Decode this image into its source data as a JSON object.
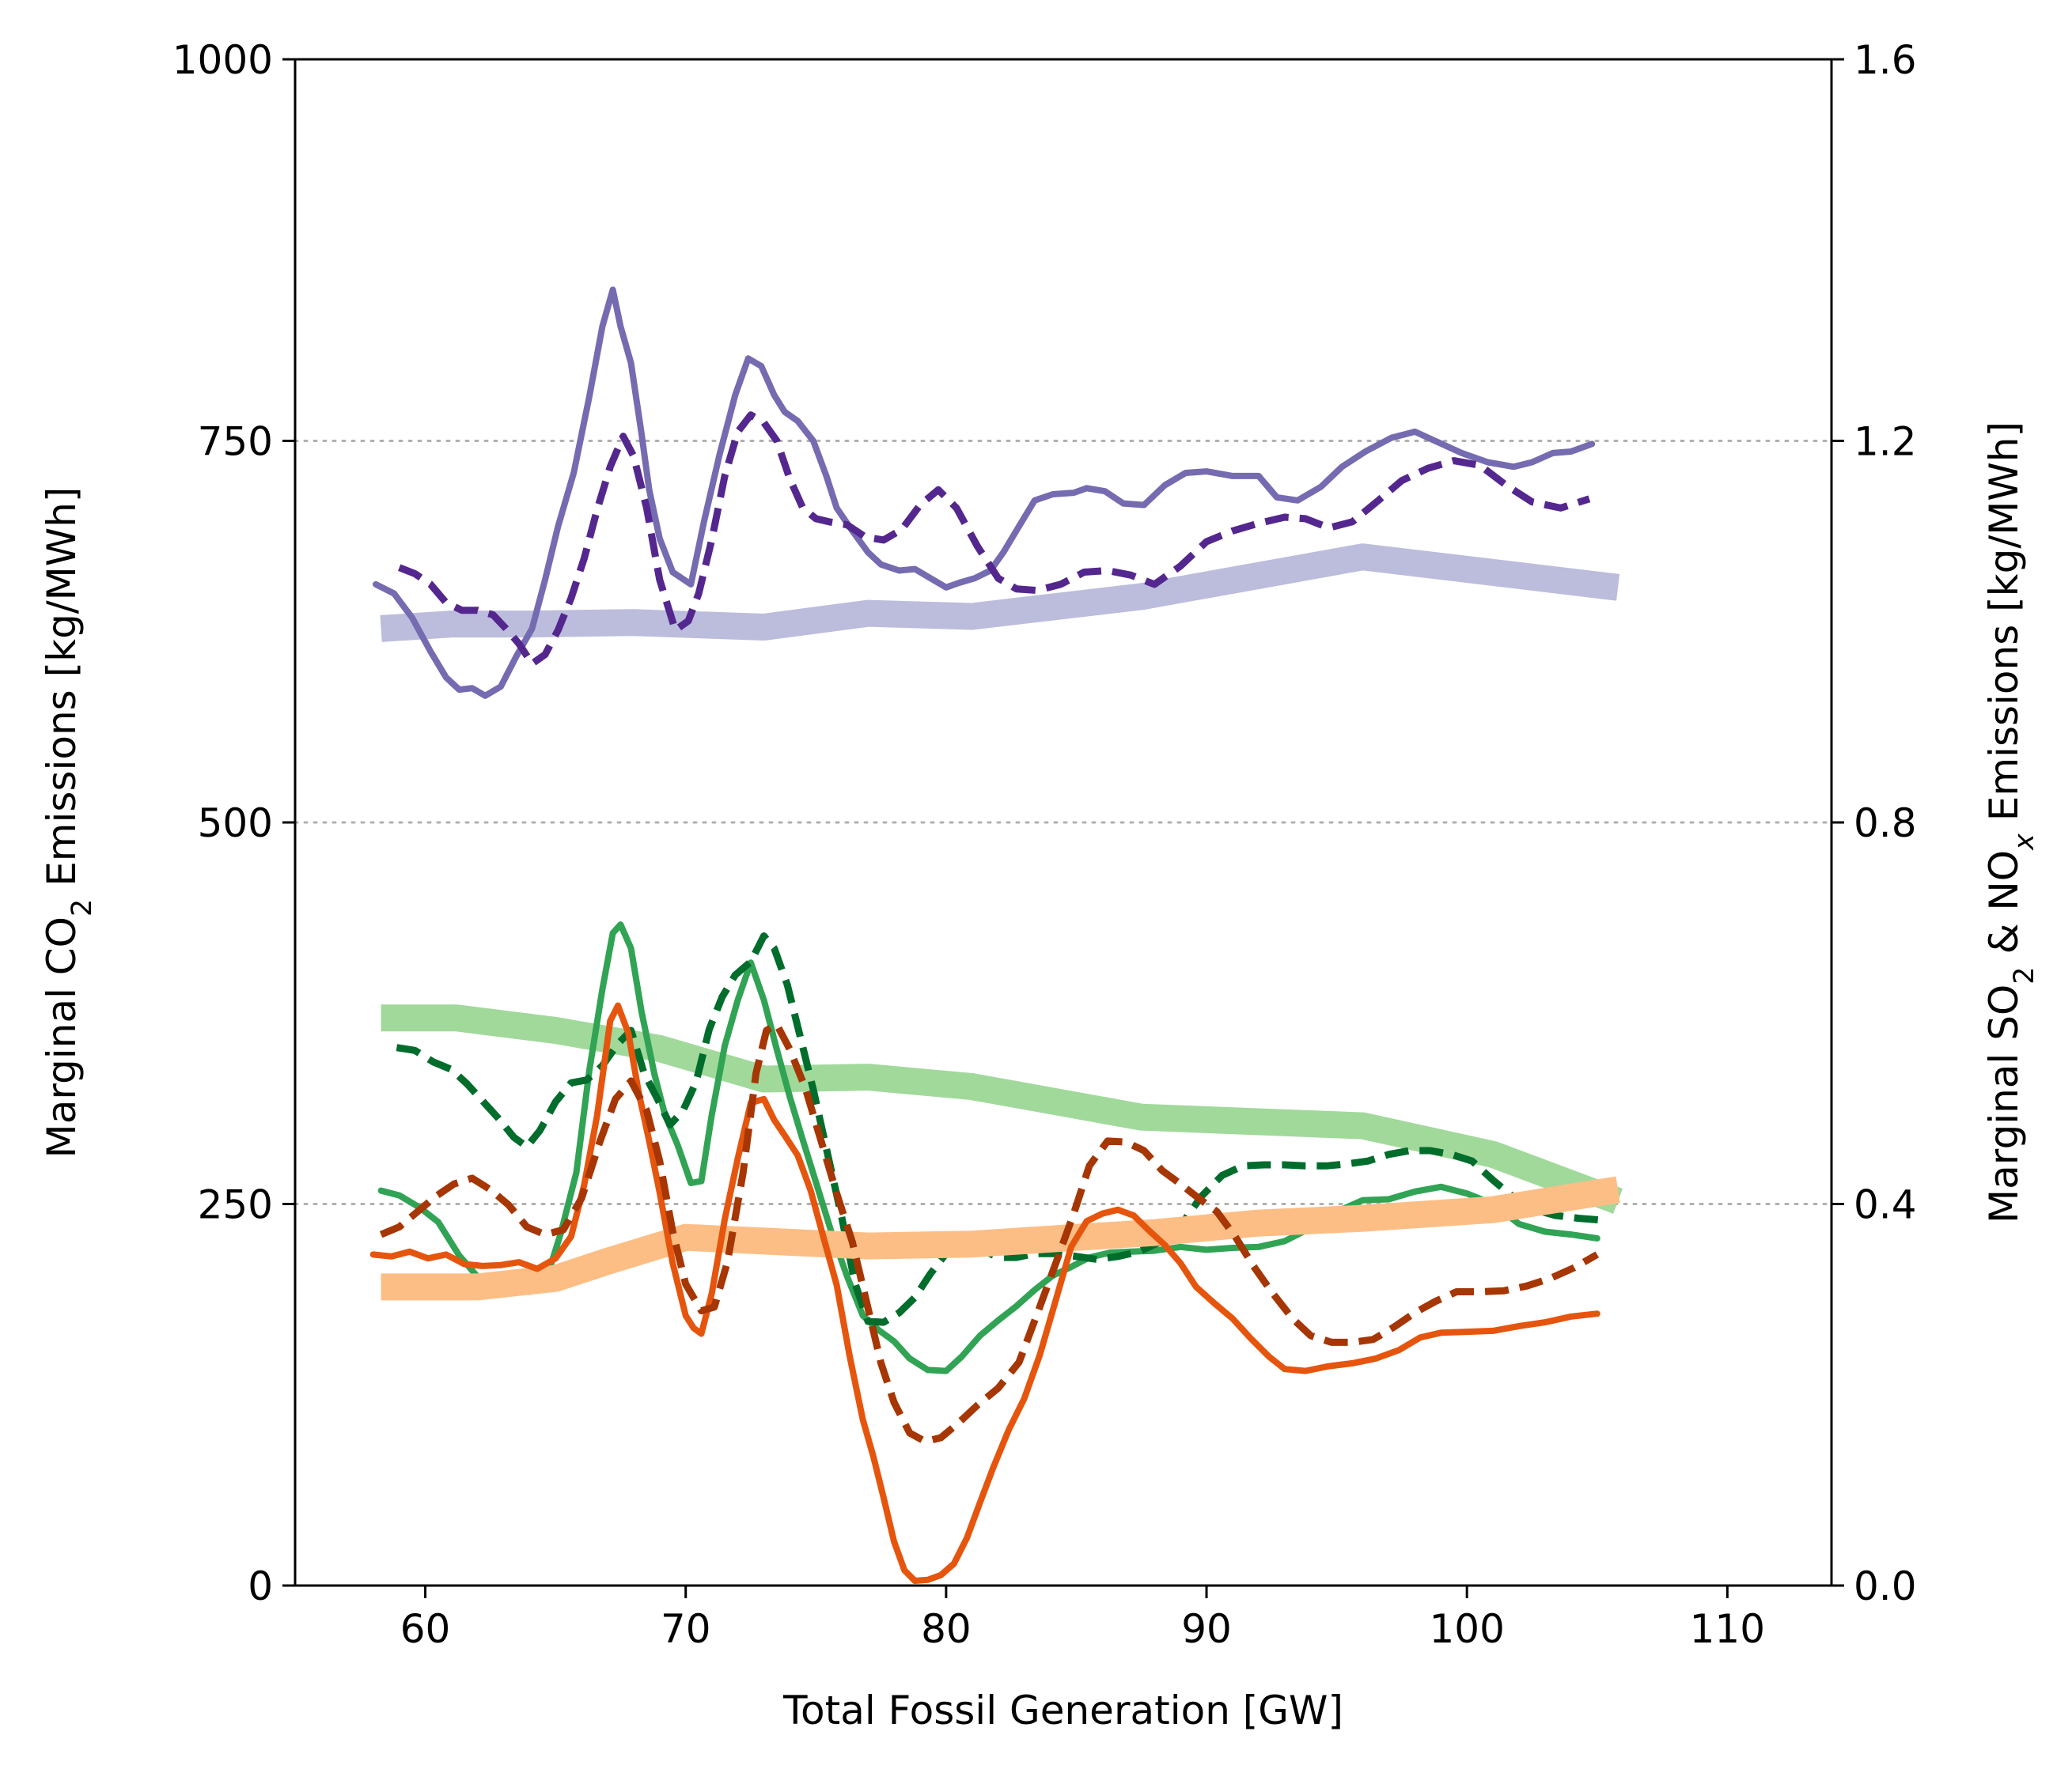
{
  "chart_data": {
    "type": "line",
    "title": "",
    "xlabel": "Total Fossil Generation [GW]",
    "ylabel_left": {
      "text_before": "Marginal CO",
      "subscript": "2",
      "text_after": " Emissions [kg/MWh]"
    },
    "ylabel_right": {
      "text_1": "Marginal SO",
      "sub_1": "2",
      "text_2": " & NO",
      "sub_2": "x",
      "text_3": " Emissions [kg/MWh]"
    },
    "xlim": [
      55,
      114
    ],
    "ylim_left": [
      0,
      1000
    ],
    "ylim_right": [
      0.0,
      1.6
    ],
    "x_ticks": [
      60,
      70,
      80,
      90,
      100,
      110
    ],
    "x_tick_labels": [
      "60",
      "70",
      "80",
      "90",
      "100",
      "110"
    ],
    "y_left_ticks": [
      0,
      250,
      500,
      750,
      1000
    ],
    "y_left_tick_labels": [
      "0",
      "250",
      "500",
      "750",
      "1000"
    ],
    "y_right_ticks": [
      0.0,
      0.4,
      0.8,
      1.2,
      1.6
    ],
    "y_right_tick_labels": [
      "0.0",
      "0.4",
      "0.8",
      "1.2",
      "1.6"
    ],
    "grid": "horizontal dotted at 250, 500, 750",
    "legend": "none",
    "series": [
      {
        "axis": "left",
        "style": "band",
        "color": "#bcbddc",
        "x": [
          58.3,
          61,
          64,
          68,
          73,
          77,
          81,
          87.5,
          96,
          105.8
        ],
        "y": [
          627,
          630,
          630,
          631,
          628,
          637,
          635,
          648,
          674,
          654
        ]
      },
      {
        "axis": "left",
        "style": "solid",
        "color": "#756bb1",
        "x": [
          58.1,
          58.8,
          59.5,
          60.2,
          60.8,
          61.3,
          61.8,
          62.3,
          62.9,
          63.5,
          64.1,
          64.6,
          65.1,
          65.7,
          66.3,
          66.8,
          67.2,
          67.5,
          67.9,
          68.3,
          68.6,
          69,
          69.5,
          70.2,
          70.7,
          71.3,
          71.9,
          72.4,
          72.9,
          73.4,
          73.8,
          74.3,
          74.9,
          75.4,
          75.8,
          76.4,
          77,
          77.5,
          78.2,
          78.8,
          79.4,
          80,
          80.5,
          81.1,
          81.7,
          82.2,
          82.8,
          83.4,
          84.1,
          84.9,
          85.4,
          86.1,
          86.8,
          87.6,
          88.4,
          89.2,
          90,
          91,
          92,
          92.7,
          93.5,
          94.4,
          95.2,
          96.1,
          97.1,
          98,
          98.9,
          99.8,
          100.8,
          101.8,
          102.5,
          103.3,
          104,
          104.8
        ],
        "y": [
          656,
          650,
          634,
          612,
          595,
          587,
          588,
          583,
          589,
          609,
          627,
          659,
          694,
          729,
          779,
          825,
          849,
          825,
          801,
          755,
          718,
          686,
          664,
          656,
          697,
          741,
          780,
          804,
          799,
          780,
          769,
          763,
          750,
          727,
          706,
          691,
          677,
          669,
          665,
          666,
          660,
          654,
          657,
          660,
          665,
          677,
          694,
          711,
          715,
          716,
          719,
          717,
          709,
          708,
          721,
          729,
          730,
          727,
          727,
          713,
          711,
          720,
          733,
          743,
          752,
          756,
          749,
          742,
          736,
          733,
          736,
          742,
          743,
          748
        ]
      },
      {
        "axis": "left",
        "style": "dashed",
        "color": "#54278f",
        "x": [
          59,
          59.6,
          60.2,
          60.8,
          61.4,
          62,
          62.6,
          63.1,
          63.6,
          64.1,
          64.6,
          65.1,
          65.6,
          66.1,
          66.6,
          67.1,
          67.6,
          68,
          68.5,
          69,
          69.6,
          70.1,
          70.5,
          71,
          71.5,
          72,
          72.5,
          73,
          73.5,
          74,
          74.5,
          75,
          75.5,
          76.2,
          76.9,
          77.6,
          78.3,
          79,
          79.7,
          80.4,
          81.2,
          82,
          82.7,
          83.5,
          84.4,
          85.3,
          86.2,
          87.1,
          88,
          89,
          90,
          91,
          92,
          93,
          93.8,
          94.7,
          95.6,
          96.6,
          97.5,
          98.5,
          99.5,
          100.5,
          101.5,
          102.5,
          103.6,
          104.7
        ],
        "y": [
          667,
          663,
          656,
          644,
          639,
          639,
          636,
          627,
          617,
          604,
          610,
          626,
          647,
          673,
          705,
          733,
          753,
          740,
          706,
          659,
          626,
          632,
          650,
          685,
          727,
          756,
          767,
          762,
          750,
          725,
          706,
          699,
          697,
          695,
          687,
          685,
          692,
          708,
          718,
          706,
          681,
          660,
          653,
          652,
          656,
          664,
          665,
          662,
          656,
          668,
          684,
          691,
          696,
          700,
          699,
          693,
          697,
          711,
          724,
          732,
          737,
          734,
          721,
          710,
          706,
          712
        ]
      },
      {
        "axis": "right",
        "style": "band",
        "color": "#a1d99b",
        "x": [
          58.3,
          61.2,
          65,
          69,
          73,
          77,
          81,
          87.5,
          96,
          101,
          105.8
        ],
        "y": [
          0.595,
          0.595,
          0.582,
          0.563,
          0.531,
          0.533,
          0.523,
          0.491,
          0.482,
          0.452,
          0.403
        ]
      },
      {
        "axis": "right",
        "style": "solid",
        "color": "#31a354",
        "x": [
          58.3,
          59,
          59.8,
          60.5,
          61.3,
          62,
          62.6,
          63.3,
          64,
          64.6,
          65.2,
          65.8,
          66.3,
          66.8,
          67.2,
          67.5,
          67.9,
          68.3,
          68.8,
          69.2,
          69.7,
          70.2,
          70.6,
          71,
          71.5,
          72,
          72.5,
          73,
          73.5,
          74,
          74.5,
          75,
          75.6,
          76.2,
          76.8,
          77.4,
          78,
          78.6,
          79.3,
          80,
          80.6,
          81.3,
          82,
          82.7,
          83.4,
          84.1,
          84.8,
          85.5,
          86.3,
          87.1,
          88,
          89,
          90,
          91,
          92,
          93,
          94,
          95,
          96,
          97,
          98,
          99,
          100,
          101,
          102,
          103,
          104,
          105
        ],
        "y": [
          0.414,
          0.409,
          0.396,
          0.381,
          0.346,
          0.324,
          0.313,
          0.311,
          0.308,
          0.317,
          0.369,
          0.433,
          0.54,
          0.625,
          0.684,
          0.693,
          0.668,
          0.602,
          0.536,
          0.494,
          0.461,
          0.422,
          0.424,
          0.493,
          0.566,
          0.614,
          0.653,
          0.614,
          0.562,
          0.512,
          0.467,
          0.423,
          0.37,
          0.324,
          0.283,
          0.268,
          0.256,
          0.238,
          0.226,
          0.225,
          0.24,
          0.262,
          0.278,
          0.293,
          0.31,
          0.325,
          0.334,
          0.344,
          0.349,
          0.35,
          0.351,
          0.355,
          0.352,
          0.354,
          0.355,
          0.361,
          0.375,
          0.392,
          0.404,
          0.405,
          0.413,
          0.418,
          0.411,
          0.4,
          0.379,
          0.371,
          0.368,
          0.364
        ]
      },
      {
        "axis": "right",
        "style": "dashed",
        "color": "#006d2c",
        "x": [
          58.9,
          59.6,
          60.3,
          61,
          61.6,
          62.2,
          62.8,
          63.4,
          63.9,
          64.4,
          65,
          65.6,
          66.2,
          66.8,
          67.4,
          67.9,
          68.4,
          68.9,
          69.4,
          69.9,
          70.4,
          70.9,
          71.4,
          71.9,
          72.5,
          73,
          73.4,
          73.9,
          74.4,
          74.9,
          75.5,
          76,
          76.5,
          77,
          77.6,
          78.2,
          78.8,
          79.4,
          80,
          80.6,
          81.3,
          82,
          82.7,
          83.4,
          84.2,
          85,
          85.8,
          86.6,
          87.4,
          88.2,
          89,
          89.8,
          90.6,
          91.4,
          92.2,
          93,
          93.8,
          94.6,
          95.4,
          96.2,
          97,
          97.8,
          98.6,
          99.4,
          100.2,
          101,
          101.8,
          102.6,
          103.4,
          104.3,
          105.2
        ],
        "y": [
          0.564,
          0.561,
          0.549,
          0.541,
          0.526,
          0.508,
          0.49,
          0.47,
          0.46,
          0.477,
          0.507,
          0.527,
          0.53,
          0.545,
          0.568,
          0.582,
          0.537,
          0.511,
          0.483,
          0.498,
          0.528,
          0.583,
          0.617,
          0.64,
          0.654,
          0.681,
          0.668,
          0.63,
          0.575,
          0.52,
          0.446,
          0.385,
          0.317,
          0.277,
          0.276,
          0.286,
          0.302,
          0.327,
          0.348,
          0.354,
          0.353,
          0.344,
          0.344,
          0.348,
          0.348,
          0.345,
          0.342,
          0.345,
          0.35,
          0.36,
          0.377,
          0.408,
          0.43,
          0.44,
          0.441,
          0.441,
          0.44,
          0.44,
          0.442,
          0.445,
          0.452,
          0.456,
          0.456,
          0.452,
          0.445,
          0.425,
          0.407,
          0.394,
          0.388,
          0.385,
          0.383
        ]
      },
      {
        "axis": "right",
        "style": "band",
        "color": "#fdbe85",
        "x": [
          58.3,
          62,
          65,
          67,
          70,
          77,
          81,
          85,
          88,
          92,
          96,
          101,
          105.8
        ],
        "y": [
          0.313,
          0.313,
          0.322,
          0.34,
          0.365,
          0.356,
          0.358,
          0.365,
          0.37,
          0.38,
          0.385,
          0.394,
          0.415
        ]
      },
      {
        "axis": "right",
        "style": "solid",
        "color": "#e6550d",
        "x": [
          58,
          58.7,
          59.4,
          60.1,
          60.8,
          61.5,
          62.2,
          62.9,
          63.6,
          64.3,
          65,
          65.6,
          66.1,
          66.6,
          67.1,
          67.4,
          67.8,
          68.2,
          68.6,
          69,
          69.5,
          70,
          70.3,
          70.6,
          71,
          71.5,
          72,
          72.5,
          73,
          73.4,
          73.8,
          74.3,
          74.8,
          75.3,
          75.8,
          76.3,
          76.8,
          77.2,
          77.6,
          78,
          78.4,
          78.8,
          79.3,
          79.8,
          80.3,
          80.8,
          81.3,
          81.8,
          82.4,
          83,
          83.6,
          84.2,
          84.8,
          85.4,
          86,
          86.6,
          87.2,
          87.8,
          88.4,
          89,
          89.6,
          90.3,
          91,
          91.7,
          92.4,
          93,
          93.8,
          94.7,
          95.6,
          96.5,
          97.4,
          98.2,
          99,
          100,
          101,
          102,
          103,
          104,
          105
        ],
        "y": [
          0.347,
          0.345,
          0.35,
          0.343,
          0.347,
          0.337,
          0.335,
          0.336,
          0.339,
          0.332,
          0.343,
          0.366,
          0.42,
          0.493,
          0.592,
          0.608,
          0.579,
          0.516,
          0.466,
          0.412,
          0.338,
          0.283,
          0.27,
          0.264,
          0.306,
          0.384,
          0.448,
          0.506,
          0.51,
          0.488,
          0.472,
          0.451,
          0.414,
          0.364,
          0.315,
          0.24,
          0.174,
          0.136,
          0.092,
          0.046,
          0.016,
          0.005,
          0.006,
          0.011,
          0.023,
          0.05,
          0.087,
          0.123,
          0.163,
          0.196,
          0.242,
          0.298,
          0.355,
          0.382,
          0.39,
          0.394,
          0.388,
          0.372,
          0.357,
          0.338,
          0.313,
          0.296,
          0.28,
          0.259,
          0.24,
          0.227,
          0.225,
          0.23,
          0.233,
          0.238,
          0.247,
          0.26,
          0.265,
          0.266,
          0.267,
          0.272,
          0.276,
          0.282,
          0.285
        ]
      },
      {
        "axis": "right",
        "style": "dashed",
        "color": "#a63603",
        "x": [
          58.3,
          59,
          59.7,
          60.4,
          61.1,
          61.8,
          62.5,
          63.2,
          63.9,
          64.6,
          65.3,
          66,
          66.7,
          67.3,
          67.9,
          68.5,
          69,
          69.5,
          70,
          70.6,
          71.1,
          71.6,
          72.2,
          72.7,
          73.1,
          73.5,
          74,
          74.6,
          75.2,
          75.8,
          76.4,
          77,
          77.5,
          78,
          78.6,
          79.2,
          79.8,
          80.5,
          81.2,
          82,
          82.8,
          83.5,
          84.2,
          84.9,
          85.5,
          86.2,
          86.9,
          87.6,
          88.3,
          89,
          89.7,
          90.4,
          91.1,
          91.8,
          92.5,
          93.3,
          94,
          94.8,
          95.6,
          96.4,
          97.2,
          98,
          98.8,
          99.6,
          100.5,
          101.4,
          102.3,
          103.2,
          104.1,
          105
        ],
        "y": [
          0.368,
          0.376,
          0.392,
          0.408,
          0.421,
          0.427,
          0.415,
          0.399,
          0.376,
          0.368,
          0.373,
          0.406,
          0.465,
          0.51,
          0.529,
          0.498,
          0.445,
          0.371,
          0.316,
          0.288,
          0.292,
          0.339,
          0.432,
          0.537,
          0.582,
          0.588,
          0.562,
          0.521,
          0.466,
          0.411,
          0.36,
          0.291,
          0.233,
          0.192,
          0.16,
          0.151,
          0.155,
          0.171,
          0.189,
          0.207,
          0.234,
          0.285,
          0.337,
          0.39,
          0.44,
          0.466,
          0.465,
          0.456,
          0.435,
          0.421,
          0.406,
          0.392,
          0.366,
          0.335,
          0.308,
          0.28,
          0.262,
          0.255,
          0.255,
          0.258,
          0.271,
          0.286,
          0.298,
          0.308,
          0.308,
          0.309,
          0.314,
          0.322,
          0.333,
          0.347
        ]
      }
    ]
  }
}
